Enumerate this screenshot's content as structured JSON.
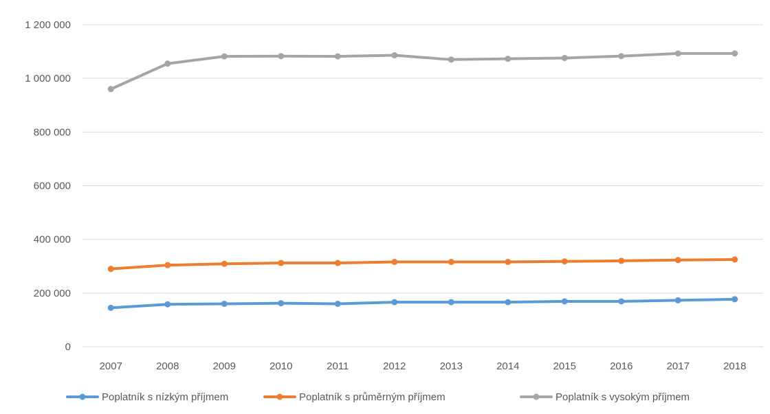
{
  "chart_data": {
    "type": "line",
    "title": "",
    "xlabel": "",
    "ylabel": "",
    "categories": [
      "2007",
      "2008",
      "2009",
      "2010",
      "2011",
      "2012",
      "2013",
      "2014",
      "2015",
      "2016",
      "2017",
      "2018"
    ],
    "ylim": [
      0,
      1200000
    ],
    "yticks": [
      {
        "value": 0,
        "label": "0"
      },
      {
        "value": 200000,
        "label": "200 000"
      },
      {
        "value": 400000,
        "label": "400 000"
      },
      {
        "value": 600000,
        "label": "600 000"
      },
      {
        "value": 800000,
        "label": "800 000"
      },
      {
        "value": 1000000,
        "label": "1 000 000"
      },
      {
        "value": 1200000,
        "label": "1 200 000"
      }
    ],
    "grid": true,
    "legend_position": "bottom",
    "series": [
      {
        "name": "Poplatník s nízkým příjmem",
        "color": "#5b9bd5",
        "values": [
          145000,
          158000,
          160000,
          162000,
          160000,
          166000,
          166000,
          166000,
          169000,
          169000,
          173000,
          177000
        ]
      },
      {
        "name": "Poplatník s průměrným příjmem",
        "color": "#ed7d31",
        "values": [
          290000,
          304000,
          309000,
          312000,
          312000,
          316000,
          316000,
          316000,
          318000,
          320000,
          323000,
          325000
        ]
      },
      {
        "name": "Poplatník s vysokým příjmem",
        "color": "#a5a5a5",
        "values": [
          960000,
          1055000,
          1082000,
          1083000,
          1082000,
          1086000,
          1070000,
          1073000,
          1076000,
          1083000,
          1093000,
          1093000
        ]
      }
    ]
  }
}
